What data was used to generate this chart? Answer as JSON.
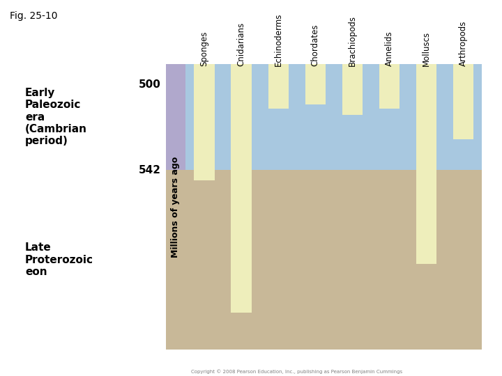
{
  "fig_label": "Fig. 25-10",
  "ylabel": "Millions of years ago",
  "y_min": 490,
  "y_max": 630,
  "y_ticks": [
    500,
    542
  ],
  "cambrian_boundary": 542,
  "label_early": "Early\nPaleozoic\nera\n(Cambrian\nperiod)",
  "label_late": "Late\nProterozoic\neon",
  "organisms": [
    "Sponges",
    "Cnidarians",
    "Echinoderms",
    "Chordates",
    "Brachiopods",
    "Annelids",
    "Molluscs",
    "Arthropods"
  ],
  "bar_tops": [
    490,
    490,
    490,
    490,
    490,
    490,
    490,
    490
  ],
  "bar_bottoms": [
    547,
    612,
    512,
    510,
    515,
    512,
    588,
    527
  ],
  "bar_color": "#eeeebb",
  "bar_width": 0.55,
  "background_blue": "#a8c8e0",
  "background_tan": "#c8b898",
  "axis_strip_color_top": "#b0a8cc",
  "axis_strip_color_bottom": "#c8b898",
  "fig_bg_color": "#ffffff",
  "copyright_text": "Copyright © 2008 Pearson Education, Inc., publishing as Pearson Benjamin Cummings"
}
